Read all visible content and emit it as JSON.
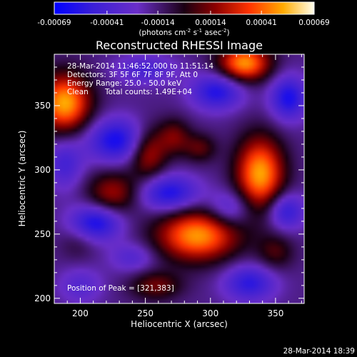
{
  "chart_data": {
    "type": "heatmap",
    "title": "Reconstructed RHESSI Image",
    "xlabel": "Heliocentric X (arcsec)",
    "ylabel": "Heliocentric Y (arcsec)",
    "xlim": [
      180,
      372
    ],
    "ylim": [
      196,
      390
    ],
    "xticks": [
      200,
      250,
      300,
      350
    ],
    "yticks": [
      200,
      250,
      300,
      350
    ],
    "colorbar": {
      "ticks": [
        -0.00069,
        -0.00041,
        -0.00014,
        0.00014,
        0.00041,
        0.00069
      ],
      "tick_labels": [
        "-0.00069",
        "-0.00041",
        "-0.00014",
        "0.00014",
        "0.00041",
        "0.00069"
      ],
      "unit_base": "(photons cm",
      "unit_exp1": "-2",
      "unit_mid": " s",
      "unit_exp2": "-1",
      "unit_mid2": " asec",
      "unit_exp3": "-2",
      "unit_end": ")",
      "vmin": -0.00069,
      "vmax": 0.00069
    },
    "annotations": {
      "time_range": "28-Mar-2014 11:46:52.000 to 11:51:14",
      "detectors": "Detectors: 3F 5F 6F 7F 8F 9F, Att 0",
      "energy": "Energy Range: 25.0 - 50.0 keV",
      "clean": "Clean",
      "total_counts": "Total counts: 1.49E+04",
      "peak": "Position of Peak = [321,383]"
    },
    "blobs": [
      {
        "x": 188,
        "y": 352,
        "amp": 0.00069,
        "sx": 14,
        "sy": 16
      },
      {
        "x": 326,
        "y": 383,
        "amp": 0.00066,
        "sx": 14,
        "sy": 10
      },
      {
        "x": 338,
        "y": 297,
        "amp": 0.00068,
        "sx": 13,
        "sy": 20
      },
      {
        "x": 290,
        "y": 249,
        "amp": 0.00066,
        "sx": 22,
        "sy": 14
      },
      {
        "x": 225,
        "y": 282,
        "amp": 0.00036,
        "sx": 14,
        "sy": 12
      },
      {
        "x": 252,
        "y": 313,
        "amp": 0.0004,
        "sx": 10,
        "sy": 14
      },
      {
        "x": 272,
        "y": 326,
        "amp": 0.00028,
        "sx": 9,
        "sy": 10
      },
      {
        "x": 292,
        "y": 317,
        "amp": 0.00024,
        "sx": 9,
        "sy": 8
      },
      {
        "x": 258,
        "y": 210,
        "amp": 0.00028,
        "sx": 14,
        "sy": 8
      },
      {
        "x": 350,
        "y": 236,
        "amp": 0.00022,
        "sx": 10,
        "sy": 10
      },
      {
        "x": 198,
        "y": 243,
        "amp": 0.00012,
        "sx": 10,
        "sy": 10
      },
      {
        "x": 228,
        "y": 323,
        "amp": -0.00046,
        "sx": 16,
        "sy": 12
      },
      {
        "x": 268,
        "y": 282,
        "amp": -0.00044,
        "sx": 16,
        "sy": 10
      },
      {
        "x": 212,
        "y": 259,
        "amp": -0.00046,
        "sx": 14,
        "sy": 10
      },
      {
        "x": 305,
        "y": 361,
        "amp": -0.00042,
        "sx": 14,
        "sy": 10
      },
      {
        "x": 360,
        "y": 356,
        "amp": -0.00044,
        "sx": 10,
        "sy": 12
      },
      {
        "x": 358,
        "y": 268,
        "amp": -0.00038,
        "sx": 10,
        "sy": 10
      },
      {
        "x": 330,
        "y": 212,
        "amp": -0.00038,
        "sx": 14,
        "sy": 10
      },
      {
        "x": 315,
        "y": 270,
        "amp": -0.00028,
        "sx": 12,
        "sy": 10
      },
      {
        "x": 250,
        "y": 378,
        "amp": -0.00026,
        "sx": 16,
        "sy": 8
      },
      {
        "x": 188,
        "y": 305,
        "amp": -0.00028,
        "sx": 10,
        "sy": 14
      },
      {
        "x": 240,
        "y": 232,
        "amp": -0.00022,
        "sx": 12,
        "sy": 8
      },
      {
        "x": 200,
        "y": 210,
        "amp": -0.0002,
        "sx": 12,
        "sy": 10
      }
    ]
  },
  "footer": {
    "timestamp": "28-Mar-2014 18:39"
  }
}
